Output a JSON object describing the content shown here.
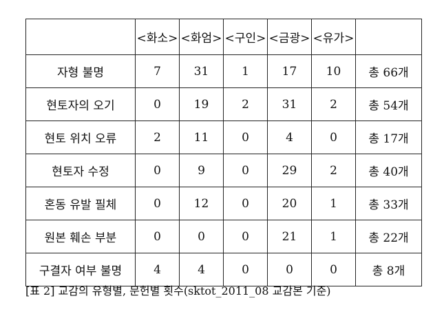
{
  "table": {
    "headers": [
      "",
      "<화소>",
      "<화엄>",
      "<구인>",
      "<금광>",
      "<유가>",
      ""
    ],
    "rows": [
      {
        "label": "자형 불명",
        "values": [
          "7",
          "31",
          "1",
          "17",
          "10"
        ],
        "total": "총 66개"
      },
      {
        "label": "현토자의 오기",
        "values": [
          "0",
          "19",
          "2",
          "31",
          "2"
        ],
        "total": "총 54개"
      },
      {
        "label": "현토 위치 오류",
        "values": [
          "2",
          "11",
          "0",
          "4",
          "0"
        ],
        "total": "총 17개"
      },
      {
        "label": "현토자 수정",
        "values": [
          "0",
          "9",
          "0",
          "29",
          "2"
        ],
        "total": "총 40개"
      },
      {
        "label": "혼동 유발 필체",
        "values": [
          "0",
          "12",
          "0",
          "20",
          "1"
        ],
        "total": "총 33개"
      },
      {
        "label": "원본 훼손 부분",
        "values": [
          "0",
          "0",
          "0",
          "21",
          "1"
        ],
        "total": "총 22개"
      },
      {
        "label": "구결자 여부 불명",
        "values": [
          "4",
          "4",
          "0",
          "0",
          "0"
        ],
        "total": "총 8개"
      }
    ]
  },
  "caption": "[표 2] 교감의 유형별, 문헌별 횟수(sktot_2011_08 교감본 기준)"
}
